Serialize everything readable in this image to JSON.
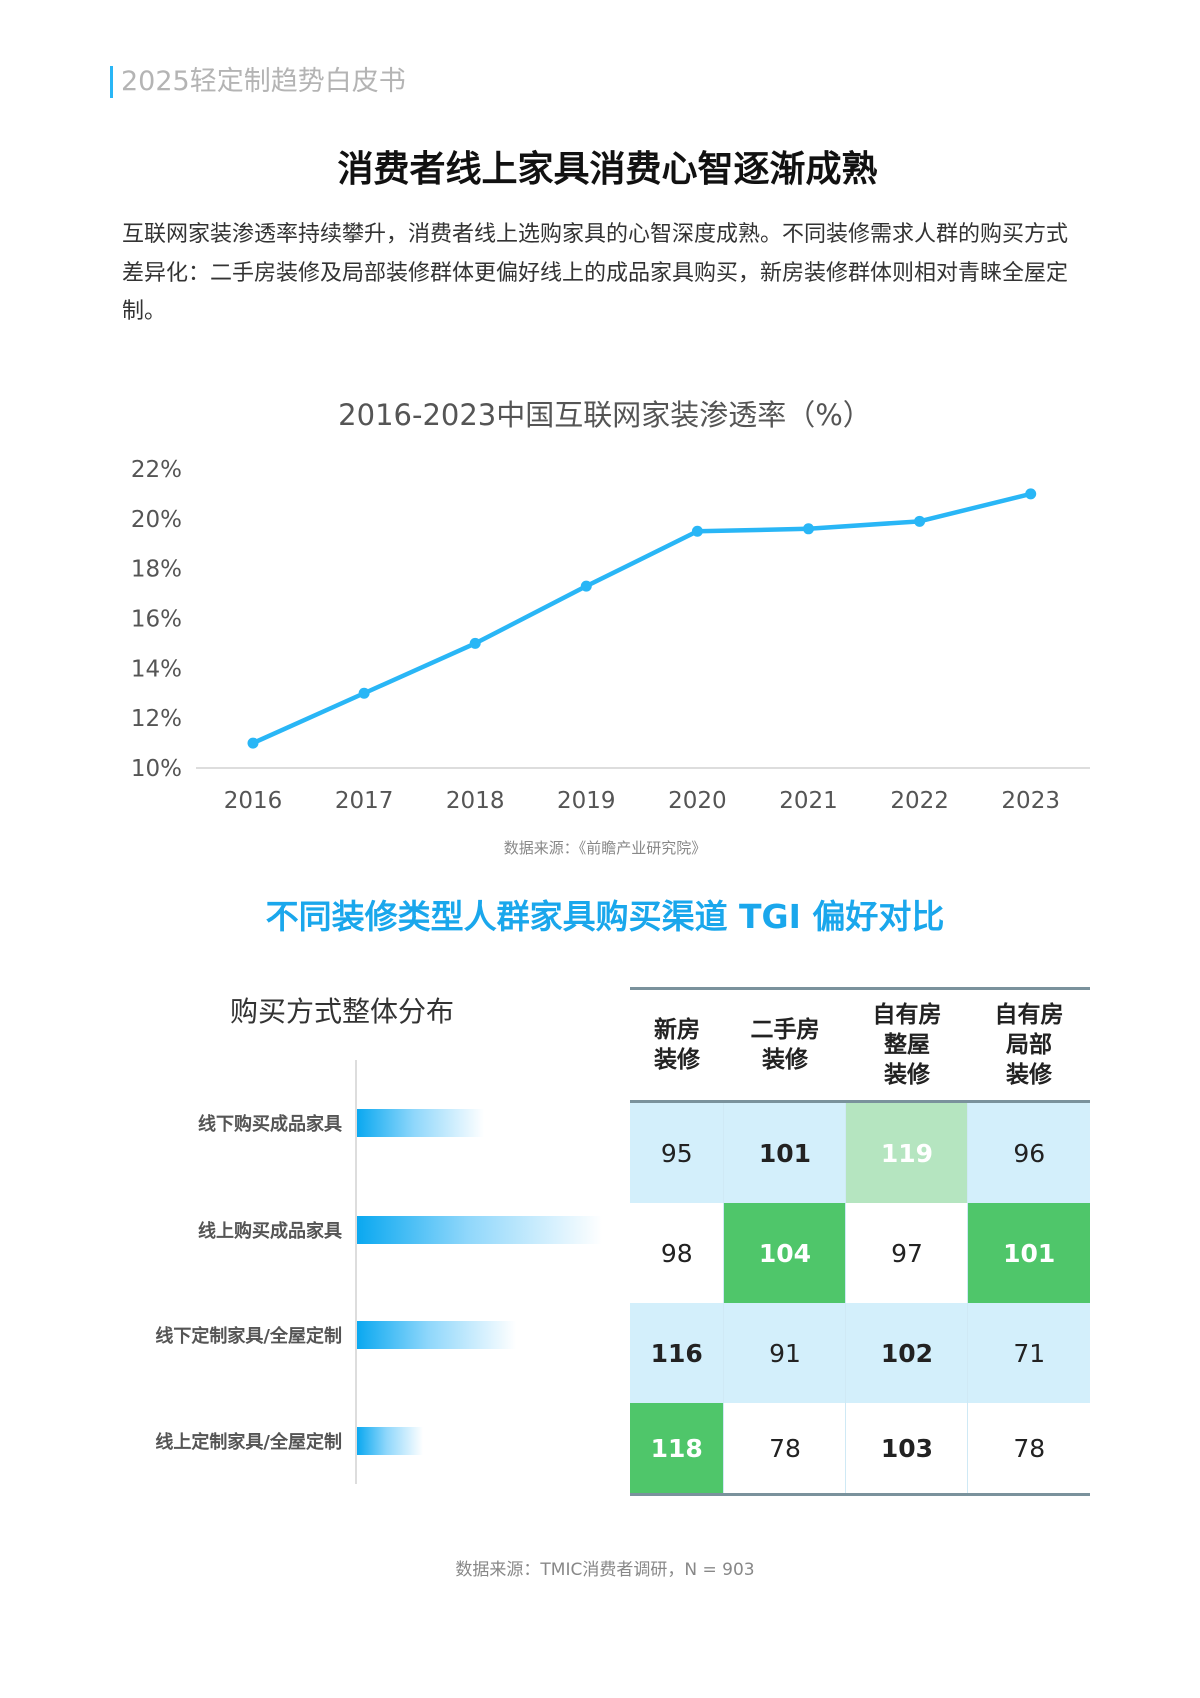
{
  "header": "2025轻定制趋势白皮书",
  "title": "消费者线上家具消费心智逐渐成熟",
  "paragraph": "互联网家装渗透率持续攀升，消费者线上选购家具的心智深度成熟。不同装修需求人群的购买方式差异化：二手房装修及局部装修群体更偏好线上的成品家具购买，新房装修群体则相对青睐全屋定制。",
  "chart_data": [
    {
      "type": "line",
      "title": "2016-2023中国互联网家装渗透率（%）",
      "categories": [
        "2016",
        "2017",
        "2018",
        "2019",
        "2020",
        "2021",
        "2022",
        "2023"
      ],
      "values": [
        11.0,
        13.0,
        15.0,
        17.3,
        19.5,
        19.6,
        19.9,
        21.0
      ],
      "yticks": [
        "10%",
        "12%",
        "14%",
        "16%",
        "18%",
        "20%",
        "22%"
      ],
      "ylim": [
        10,
        22
      ],
      "grid": false,
      "color": "#29b6f6",
      "source": "数据来源：《前瞻产业研究院》"
    },
    {
      "type": "table",
      "title": "不同装修类型人群家具购买渠道 TGI 偏好对比",
      "left_title": "购买方式整体分布",
      "rows": [
        "线下购买成品家具",
        "线上购买成品家具",
        "线下定制家具/全屋定制",
        "线上定制家具/全屋定制"
      ],
      "row_bar_relative_level": [
        0.52,
        1.0,
        0.65,
        0.27
      ],
      "columns": [
        "新房\n装修",
        "二手房\n装修",
        "自有房\n整屋\n装修",
        "自有房\n局部\n装修"
      ],
      "values": [
        [
          95,
          101,
          119,
          96
        ],
        [
          98,
          104,
          97,
          101
        ],
        [
          116,
          91,
          102,
          71
        ],
        [
          118,
          78,
          103,
          78
        ]
      ],
      "cell_styles": [
        [
          "light",
          "light-bold",
          "pale-green",
          "light"
        ],
        [
          "white",
          "green",
          "white",
          "green"
        ],
        [
          "light-bold",
          "light",
          "light-bold",
          "light"
        ],
        [
          "green",
          "white",
          "white-bold",
          "white"
        ]
      ],
      "colors": {
        "light": "#d3effb",
        "pale-green": "#b5e5c0",
        "green": "#4fc66a",
        "bar": "#0aa8f0"
      },
      "source": "数据来源：TMIC消费者调研，N = 903"
    }
  ]
}
